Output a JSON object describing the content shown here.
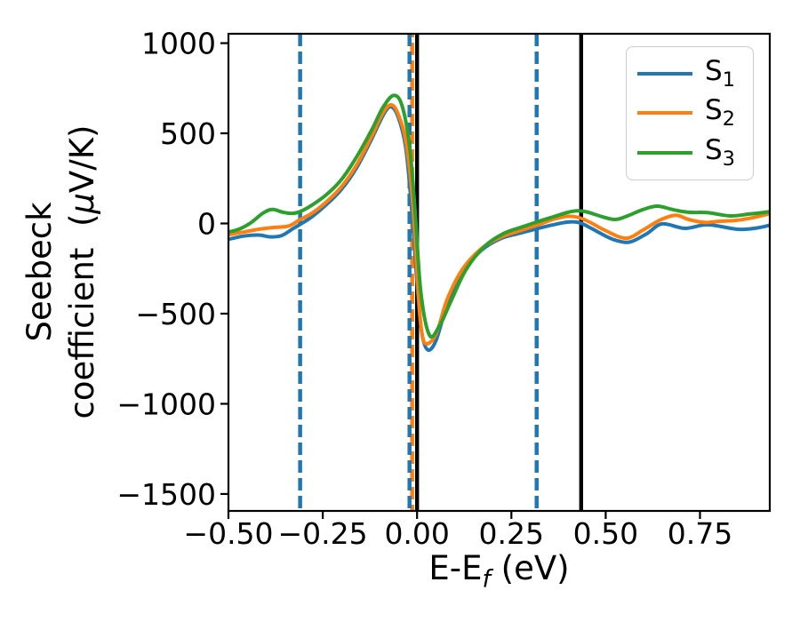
{
  "figure": {
    "background": "#ffffff"
  },
  "axes": {
    "x_label": {
      "prefix": "E-E",
      "sub": "f",
      "suffix": " (eV)"
    },
    "y_label": {
      "line1": "Seebeck",
      "line2_pre": "coefficient  (",
      "line2_mu": "μ",
      "line2_post": "V/K)"
    },
    "x_ticks": {
      "values": [
        -0.5,
        -0.25,
        0.0,
        0.25,
        0.5,
        0.75
      ],
      "labels": [
        "−0.50",
        "−0.25",
        "0.00",
        "0.25",
        "0.50",
        "0.75"
      ]
    },
    "y_ticks": {
      "values": [
        1000,
        500,
        0,
        -500,
        -1000,
        -1500
      ],
      "labels": [
        "1000",
        "500",
        "0",
        "−500",
        "−1000",
        "−1500"
      ]
    }
  },
  "legend": {
    "entries": [
      {
        "text": "S",
        "sub": "1",
        "color": "#1f77b4"
      },
      {
        "text": "S",
        "sub": "2",
        "color": "#ff7f0e"
      },
      {
        "text": "S",
        "sub": "3",
        "color": "#2ca02c"
      }
    ]
  },
  "chart_data": {
    "type": "line",
    "title": "",
    "xlabel": "E-E_f (eV)",
    "ylabel": "Seebeck coefficient (μV/K)",
    "xlim": [
      -0.5,
      0.935
    ],
    "ylim": [
      -1594,
      1052
    ],
    "grid": false,
    "legend_position": "upper right",
    "series": [
      {
        "name": "S1",
        "color": "#1f77b4",
        "x": [
          -0.5,
          -0.46,
          -0.42,
          -0.39,
          -0.36,
          -0.33,
          -0.31,
          -0.28,
          -0.24,
          -0.2,
          -0.16,
          -0.12,
          -0.09,
          -0.07,
          -0.05,
          -0.03,
          -0.015,
          0.0,
          0.012,
          0.028,
          0.05,
          0.08,
          0.12,
          0.17,
          0.22,
          0.27,
          0.32,
          0.36,
          0.4,
          0.43,
          0.46,
          0.5,
          0.53,
          0.566,
          0.61,
          0.65,
          0.71,
          0.77,
          0.85,
          0.9,
          0.935
        ],
        "y": [
          -88,
          -70,
          -64,
          -74,
          -68,
          -30,
          -5,
          35,
          105,
          190,
          310,
          470,
          600,
          648,
          590,
          420,
          100,
          -330,
          -600,
          -700,
          -650,
          -450,
          -270,
          -150,
          -85,
          -55,
          -28,
          -8,
          8,
          5,
          -25,
          -70,
          -95,
          -102,
          -55,
          -2,
          -27,
          -7,
          -32,
          -25,
          -10
        ]
      },
      {
        "name": "S2",
        "color": "#ff7f0e",
        "x": [
          -0.5,
          -0.46,
          -0.42,
          -0.38,
          -0.34,
          -0.31,
          -0.28,
          -0.24,
          -0.2,
          -0.16,
          -0.12,
          -0.09,
          -0.068,
          -0.05,
          -0.03,
          -0.012,
          0.0,
          0.01,
          0.022,
          0.05,
          0.08,
          0.12,
          0.17,
          0.22,
          0.27,
          0.32,
          0.36,
          0.4,
          0.43,
          0.46,
          0.5,
          0.554,
          0.6,
          0.645,
          0.686,
          0.72,
          0.762,
          0.8,
          0.84,
          0.88,
          0.935
        ],
        "y": [
          -62,
          -48,
          -32,
          -22,
          -14,
          22,
          55,
          120,
          205,
          325,
          485,
          615,
          658,
          605,
          455,
          130,
          -270,
          -560,
          -665,
          -615,
          -420,
          -255,
          -140,
          -78,
          -42,
          -8,
          22,
          40,
          32,
          5,
          -40,
          -82,
          -35,
          20,
          46,
          22,
          6,
          12,
          16,
          28,
          55
        ]
      },
      {
        "name": "S3",
        "color": "#2ca02c",
        "x": [
          -0.5,
          -0.47,
          -0.44,
          -0.41,
          -0.385,
          -0.355,
          -0.33,
          -0.31,
          -0.28,
          -0.24,
          -0.2,
          -0.16,
          -0.12,
          -0.09,
          -0.062,
          -0.04,
          -0.02,
          -0.005,
          0.01,
          0.033,
          0.06,
          0.09,
          0.13,
          0.18,
          0.23,
          0.28,
          0.32,
          0.36,
          0.4,
          0.425,
          0.45,
          0.49,
          0.526,
          0.56,
          0.6,
          0.637,
          0.68,
          0.72,
          0.77,
          0.83,
          0.88,
          0.935
        ],
        "y": [
          -48,
          -30,
          5,
          55,
          78,
          62,
          56,
          66,
          100,
          160,
          245,
          370,
          520,
          645,
          710,
          655,
          430,
          60,
          -380,
          -620,
          -565,
          -430,
          -255,
          -125,
          -55,
          -18,
          10,
          36,
          62,
          70,
          64,
          38,
          22,
          44,
          78,
          96,
          76,
          62,
          60,
          42,
          52,
          65
        ]
      }
    ],
    "vlines": [
      {
        "x": -0.013,
        "style": "dashed",
        "color": "#ff7f0e"
      },
      {
        "x": -0.31,
        "style": "dashed",
        "color": "#1f77b4"
      },
      {
        "x": -0.02,
        "style": "dashed",
        "color": "#1f77b4"
      },
      {
        "x": 0.317,
        "style": "dashed",
        "color": "#1f77b4"
      },
      {
        "x": 0.0,
        "style": "solid",
        "color": "#000000"
      },
      {
        "x": 0.435,
        "style": "solid",
        "color": "#000000"
      }
    ]
  }
}
